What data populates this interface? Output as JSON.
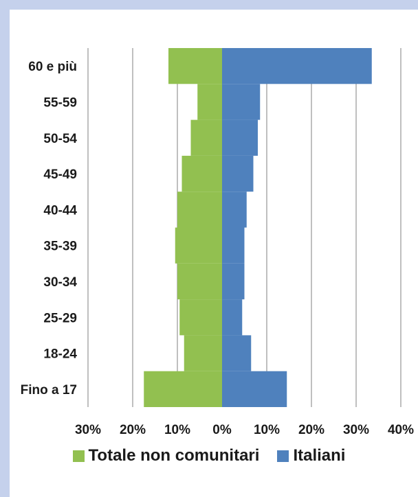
{
  "chart_data": {
    "type": "bar",
    "orientation": "horizontal-population-pyramid",
    "categories": [
      "Fino a 17",
      "18-24",
      "25-29",
      "30-34",
      "35-39",
      "40-44",
      "45-49",
      "50-54",
      "55-59",
      "60 e più"
    ],
    "series": [
      {
        "name": "Totale non comunitari",
        "color": "#92c050",
        "side": "left",
        "values": [
          17.5,
          8.5,
          9.5,
          10,
          10.5,
          10,
          9,
          7,
          5.5,
          12
        ]
      },
      {
        "name": "Italiani",
        "color": "#4f81bd",
        "side": "right",
        "values": [
          14.5,
          6.5,
          4.5,
          5,
          5,
          5.5,
          7,
          8,
          8.5,
          33.5
        ]
      }
    ],
    "xlim": [
      -30,
      40
    ],
    "xticks": [
      -30,
      -20,
      -10,
      0,
      10,
      20,
      30,
      40
    ],
    "xtick_labels": [
      "30%",
      "20%",
      "10%",
      "0%",
      "10%",
      "20%",
      "30%",
      "40%"
    ],
    "grid": "vertical",
    "legend_position": "bottom"
  }
}
